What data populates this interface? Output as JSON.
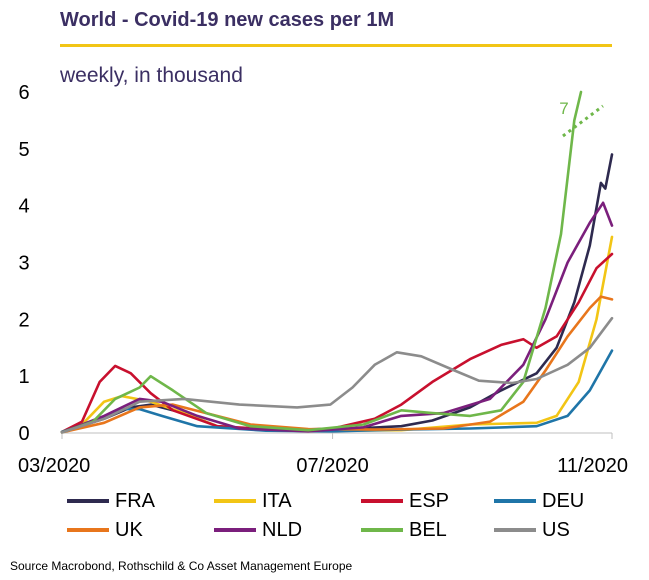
{
  "header": {
    "title": "World - Covid-19 new cases per 1M",
    "subtitle": "weekly, in thousand",
    "rule_color": "#f2c515"
  },
  "source": "Source Macrobond, Rothschild & Co Asset Management Europe",
  "bel_peak_label": "7",
  "chart_data": {
    "type": "line",
    "title": "World - Covid-19 new cases per 1M",
    "subtitle": "weekly, in thousand",
    "xlabel": "",
    "ylabel": "",
    "x_ticks": [
      "03/2020",
      "07/2020",
      "11/2020"
    ],
    "y_ticks": [
      "0",
      "1",
      "2",
      "3",
      "4",
      "5",
      "6"
    ],
    "xlim": [
      "2020-03-01",
      "2020-11-04"
    ],
    "ylim": [
      0,
      6
    ],
    "grid": false,
    "legend_position": "bottom",
    "annotation": {
      "text": "7",
      "series": "BEL",
      "note": "BEL peak above axis"
    },
    "series": [
      {
        "name": "FRA",
        "color": "#2e2a4f",
        "points": [
          [
            "2020-03-01",
            0.02
          ],
          [
            "2020-03-20",
            0.25
          ],
          [
            "2020-04-01",
            0.45
          ],
          [
            "2020-04-10",
            0.5
          ],
          [
            "2020-04-25",
            0.35
          ],
          [
            "2020-05-10",
            0.12
          ],
          [
            "2020-06-01",
            0.05
          ],
          [
            "2020-07-01",
            0.06
          ],
          [
            "2020-08-01",
            0.12
          ],
          [
            "2020-08-15",
            0.22
          ],
          [
            "2020-09-01",
            0.45
          ],
          [
            "2020-09-15",
            0.75
          ],
          [
            "2020-10-01",
            1.05
          ],
          [
            "2020-10-10",
            1.5
          ],
          [
            "2020-10-18",
            2.3
          ],
          [
            "2020-10-25",
            3.3
          ],
          [
            "2020-10-30",
            4.4
          ],
          [
            "2020-11-01",
            4.3
          ],
          [
            "2020-11-04",
            4.9
          ]
        ]
      },
      {
        "name": "ITA",
        "color": "#f2c515",
        "points": [
          [
            "2020-03-01",
            0.02
          ],
          [
            "2020-03-10",
            0.15
          ],
          [
            "2020-03-20",
            0.55
          ],
          [
            "2020-03-28",
            0.65
          ],
          [
            "2020-04-10",
            0.55
          ],
          [
            "2020-04-25",
            0.35
          ],
          [
            "2020-05-10",
            0.12
          ],
          [
            "2020-06-01",
            0.05
          ],
          [
            "2020-07-01",
            0.04
          ],
          [
            "2020-08-01",
            0.05
          ],
          [
            "2020-09-01",
            0.15
          ],
          [
            "2020-10-01",
            0.18
          ],
          [
            "2020-10-10",
            0.3
          ],
          [
            "2020-10-20",
            0.9
          ],
          [
            "2020-10-28",
            2.0
          ],
          [
            "2020-11-04",
            3.45
          ]
        ]
      },
      {
        "name": "ESP",
        "color": "#c8102e",
        "points": [
          [
            "2020-03-01",
            0.02
          ],
          [
            "2020-03-10",
            0.2
          ],
          [
            "2020-03-18",
            0.9
          ],
          [
            "2020-03-25",
            1.18
          ],
          [
            "2020-04-01",
            1.05
          ],
          [
            "2020-04-10",
            0.7
          ],
          [
            "2020-04-20",
            0.4
          ],
          [
            "2020-05-10",
            0.12
          ],
          [
            "2020-06-10",
            0.05
          ],
          [
            "2020-07-01",
            0.08
          ],
          [
            "2020-07-20",
            0.25
          ],
          [
            "2020-08-01",
            0.5
          ],
          [
            "2020-08-15",
            0.9
          ],
          [
            "2020-09-01",
            1.3
          ],
          [
            "2020-09-15",
            1.55
          ],
          [
            "2020-09-25",
            1.65
          ],
          [
            "2020-10-01",
            1.5
          ],
          [
            "2020-10-10",
            1.7
          ],
          [
            "2020-10-20",
            2.3
          ],
          [
            "2020-10-28",
            2.9
          ],
          [
            "2020-11-04",
            3.15
          ]
        ]
      },
      {
        "name": "DEU",
        "color": "#1f75a8",
        "points": [
          [
            "2020-03-01",
            0.02
          ],
          [
            "2020-03-15",
            0.2
          ],
          [
            "2020-03-28",
            0.42
          ],
          [
            "2020-04-05",
            0.42
          ],
          [
            "2020-04-15",
            0.3
          ],
          [
            "2020-05-01",
            0.12
          ],
          [
            "2020-06-01",
            0.04
          ],
          [
            "2020-07-01",
            0.03
          ],
          [
            "2020-08-01",
            0.06
          ],
          [
            "2020-09-01",
            0.08
          ],
          [
            "2020-10-01",
            0.12
          ],
          [
            "2020-10-15",
            0.3
          ],
          [
            "2020-10-25",
            0.75
          ],
          [
            "2020-11-04",
            1.45
          ]
        ]
      },
      {
        "name": "UK",
        "color": "#e8761c",
        "points": [
          [
            "2020-03-01",
            0.01
          ],
          [
            "2020-03-20",
            0.18
          ],
          [
            "2020-04-05",
            0.45
          ],
          [
            "2020-04-20",
            0.5
          ],
          [
            "2020-05-05",
            0.35
          ],
          [
            "2020-05-25",
            0.15
          ],
          [
            "2020-06-20",
            0.07
          ],
          [
            "2020-07-20",
            0.06
          ],
          [
            "2020-08-20",
            0.08
          ],
          [
            "2020-09-10",
            0.2
          ],
          [
            "2020-09-25",
            0.55
          ],
          [
            "2020-10-05",
            1.1
          ],
          [
            "2020-10-15",
            1.7
          ],
          [
            "2020-10-25",
            2.2
          ],
          [
            "2020-10-30",
            2.4
          ],
          [
            "2020-11-04",
            2.35
          ]
        ]
      },
      {
        "name": "NLD",
        "color": "#7b1f7c",
        "points": [
          [
            "2020-03-01",
            0.01
          ],
          [
            "2020-03-20",
            0.3
          ],
          [
            "2020-04-05",
            0.6
          ],
          [
            "2020-04-15",
            0.55
          ],
          [
            "2020-05-01",
            0.3
          ],
          [
            "2020-05-20",
            0.08
          ],
          [
            "2020-06-20",
            0.03
          ],
          [
            "2020-07-15",
            0.1
          ],
          [
            "2020-08-01",
            0.3
          ],
          [
            "2020-08-20",
            0.35
          ],
          [
            "2020-09-10",
            0.6
          ],
          [
            "2020-09-25",
            1.2
          ],
          [
            "2020-10-05",
            2.0
          ],
          [
            "2020-10-15",
            3.0
          ],
          [
            "2020-10-25",
            3.7
          ],
          [
            "2020-10-31",
            4.05
          ],
          [
            "2020-11-04",
            3.65
          ]
        ]
      },
      {
        "name": "BEL",
        "color": "#6fb74a",
        "points": [
          [
            "2020-03-01",
            0.01
          ],
          [
            "2020-03-15",
            0.2
          ],
          [
            "2020-03-25",
            0.6
          ],
          [
            "2020-04-05",
            0.8
          ],
          [
            "2020-04-10",
            1.0
          ],
          [
            "2020-04-20",
            0.75
          ],
          [
            "2020-05-05",
            0.35
          ],
          [
            "2020-05-25",
            0.12
          ],
          [
            "2020-06-20",
            0.05
          ],
          [
            "2020-07-15",
            0.15
          ],
          [
            "2020-08-01",
            0.4
          ],
          [
            "2020-08-15",
            0.35
          ],
          [
            "2020-09-01",
            0.3
          ],
          [
            "2020-09-15",
            0.4
          ],
          [
            "2020-09-25",
            0.9
          ],
          [
            "2020-10-05",
            2.2
          ],
          [
            "2020-10-12",
            3.5
          ],
          [
            "2020-10-18",
            5.5
          ],
          [
            "2020-10-21",
            6.0
          ]
        ]
      },
      {
        "name": "US",
        "color": "#8c8c8c",
        "points": [
          [
            "2020-03-01",
            0.01
          ],
          [
            "2020-03-20",
            0.25
          ],
          [
            "2020-04-05",
            0.55
          ],
          [
            "2020-04-25",
            0.6
          ],
          [
            "2020-05-20",
            0.5
          ],
          [
            "2020-06-15",
            0.45
          ],
          [
            "2020-06-30",
            0.5
          ],
          [
            "2020-07-10",
            0.8
          ],
          [
            "2020-07-20",
            1.2
          ],
          [
            "2020-07-30",
            1.42
          ],
          [
            "2020-08-10",
            1.35
          ],
          [
            "2020-08-25",
            1.1
          ],
          [
            "2020-09-05",
            0.92
          ],
          [
            "2020-09-20",
            0.88
          ],
          [
            "2020-10-01",
            0.95
          ],
          [
            "2020-10-15",
            1.2
          ],
          [
            "2020-10-25",
            1.5
          ],
          [
            "2020-11-04",
            2.02
          ]
        ]
      }
    ]
  }
}
